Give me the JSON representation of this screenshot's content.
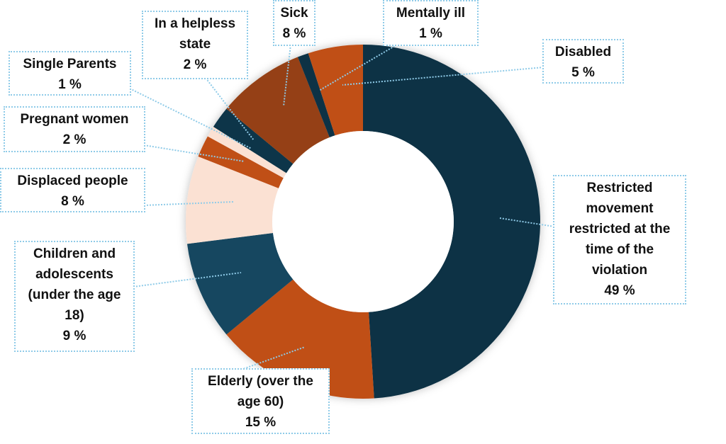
{
  "chart_data": {
    "type": "pie",
    "variant": "donut",
    "start": "top",
    "direction": "clockwise",
    "slices": [
      {
        "label": "Restricted movement restricted at the time of the violation",
        "value": 49,
        "display": "49 %",
        "color": "#0c3144"
      },
      {
        "label": "Elderly (over the age 60)",
        "value": 15,
        "display": "15 %",
        "color": "#c04f17"
      },
      {
        "label": "Children and adolescents (under the age 18)",
        "value": 9,
        "display": "9 %",
        "color": "#134760"
      },
      {
        "label": "Displaced people",
        "value": 8,
        "display": "8 %",
        "color": "#fbe1d3"
      },
      {
        "label": "Pregnant women",
        "value": 2,
        "display": "2 %",
        "color": "#c04f17"
      },
      {
        "label": "Single Parents",
        "value": 1,
        "display": "1 %",
        "color": "#fbe1d3"
      },
      {
        "label": "In a helpless state",
        "value": 2,
        "display": "2 %",
        "color": "#0c3549"
      },
      {
        "label": "Sick",
        "value": 8,
        "display": "8 %",
        "color": "#954112"
      },
      {
        "label": "Mentally ill",
        "value": 1,
        "display": "1 %",
        "color": "#0c3144"
      },
      {
        "label": "Disabled",
        "value": 5,
        "display": "5 %",
        "color": "#c04f17"
      }
    ],
    "label_lines": [
      [
        "Restricted",
        "movement",
        "restricted at the",
        "time of the",
        "violation"
      ],
      [
        "Elderly (over the",
        "age 60)"
      ],
      [
        "Children and",
        "adolescents",
        "(under the age",
        "18)"
      ],
      [
        "Displaced people"
      ],
      [
        "Pregnant women"
      ],
      [
        "Single Parents"
      ],
      [
        "In a helpless",
        "state"
      ],
      [
        "Sick"
      ],
      [
        "Mentally ill"
      ],
      [
        "Disabled"
      ]
    ],
    "legend": "none"
  }
}
